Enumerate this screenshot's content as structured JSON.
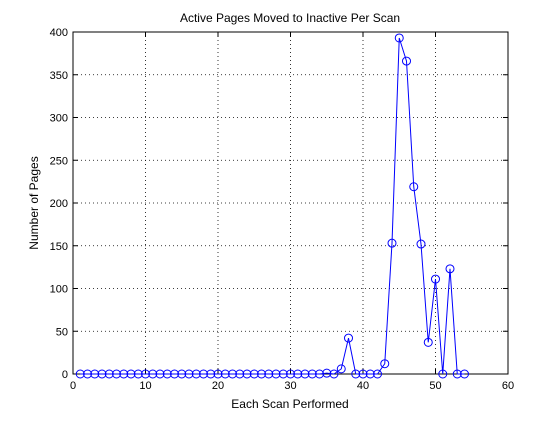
{
  "chart_data": {
    "type": "line",
    "title": "Active Pages Moved to Inactive Per Scan",
    "xlabel": "Each Scan Performed",
    "ylabel": "Number of Pages",
    "xlim": [
      0,
      60
    ],
    "ylim": [
      0,
      400
    ],
    "xticks": [
      0,
      10,
      20,
      30,
      40,
      50,
      60
    ],
    "yticks": [
      0,
      50,
      100,
      150,
      200,
      250,
      300,
      350,
      400
    ],
    "grid": true,
    "marker": "circle",
    "line_color": "#0000ff",
    "series": [
      {
        "x": [
          1,
          2,
          3,
          4,
          5,
          6,
          7,
          8,
          9,
          10,
          11,
          12,
          13,
          14,
          15,
          16,
          17,
          18,
          19,
          20,
          21,
          22,
          23,
          24,
          25,
          26,
          27,
          28,
          29,
          30,
          31,
          32,
          33,
          34,
          35,
          36,
          37,
          38,
          39,
          40,
          41,
          42,
          43,
          44,
          45,
          46,
          47,
          48,
          49,
          50,
          51,
          52,
          53,
          54
        ],
        "values": [
          0,
          0,
          0,
          0,
          0,
          0,
          0,
          0,
          0,
          0,
          0,
          0,
          0,
          0,
          0,
          0,
          0,
          0,
          0,
          0,
          0,
          0,
          0,
          0,
          0,
          0,
          0,
          0,
          0,
          0,
          0,
          0,
          0,
          0,
          1,
          0,
          6,
          42,
          0,
          0,
          0,
          0,
          12,
          153,
          393,
          366,
          219,
          152,
          37,
          111,
          0,
          123,
          0,
          0
        ]
      }
    ]
  }
}
